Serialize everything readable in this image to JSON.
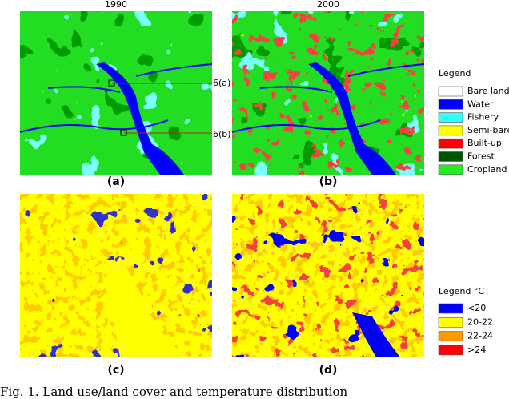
{
  "panels": {
    "years": [
      "1990",
      "2000"
    ],
    "labels": [
      "(a)",
      "(b)",
      "(c)",
      "(d)"
    ],
    "annotations": [
      "6(a)",
      "6(b)"
    ]
  },
  "landuse_legend": {
    "title": "Legend",
    "items": [
      {
        "label": "Bare land",
        "color": "#ffffff"
      },
      {
        "label": "Water",
        "color": "#0000ff"
      },
      {
        "label": "Fishery",
        "color": "#33ffff"
      },
      {
        "label": "Semi-bare",
        "color": "#ffff00"
      },
      {
        "label": "Built-up",
        "color": "#ff0000"
      },
      {
        "label": "Forest",
        "color": "#005500"
      },
      {
        "label": "Cropland",
        "color": "#22ee22"
      }
    ]
  },
  "temperature_legend": {
    "title": "Legend °C",
    "items": [
      {
        "label": "<20",
        "color": "#0000ff"
      },
      {
        "label": "20-22",
        "color": "#ffff00"
      },
      {
        "label": "22-24",
        "color": "#ff9900"
      },
      {
        "label": ">24",
        "color": "#ff0000"
      }
    ]
  },
  "caption": "Fig. 1.   Land use/land cover and temperature distribution"
}
